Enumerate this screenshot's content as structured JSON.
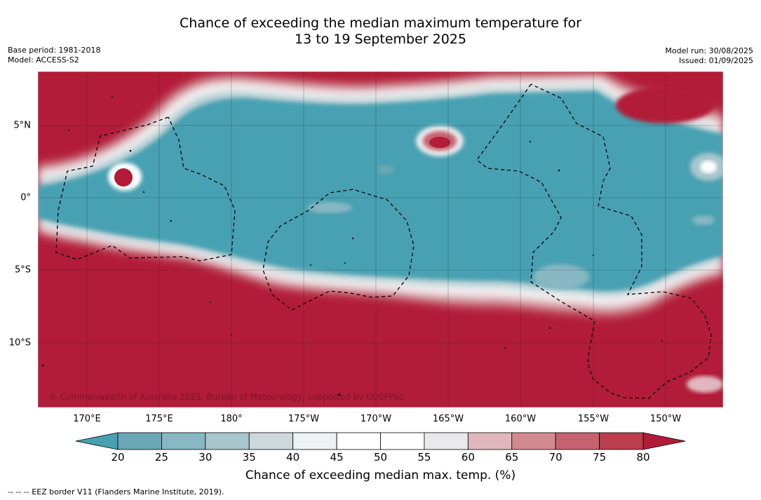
{
  "title_line1": "Chance of exceeding the median maximum temperature for",
  "title_line2": "13 to 19 September 2025",
  "meta_left": {
    "base_period": "Base period: 1981-2018",
    "model": "Model: ACCESS-S2"
  },
  "meta_right": {
    "model_run": "Model run: 30/08/2025",
    "issued": "Issued: 01/09/2025"
  },
  "map": {
    "lon_ticks": [
      "170°E",
      "175°E",
      "180°",
      "175°W",
      "170°W",
      "165°W",
      "160°W",
      "155°W",
      "150°W"
    ],
    "lat_ticks": [
      "5°N",
      "0°",
      "5°S",
      "10°S"
    ],
    "lon_range_deg_east": [
      166.5,
      214.0
    ],
    "lat_range_deg": [
      -14.5,
      8.7
    ],
    "background_category": "above (>80%)",
    "equatorial_band": "below (20–25%)",
    "copyright": "© Commonwealth of Australia 2025, Bureau of Meteorology, supported by COSPPac"
  },
  "colorbar": {
    "ticks": [
      "20",
      "25",
      "30",
      "35",
      "40",
      "45",
      "50",
      "55",
      "60",
      "65",
      "70",
      "75",
      "80"
    ],
    "colors": [
      "#69a7b6",
      "#87b7c2",
      "#a7c6cc",
      "#cdd8dc",
      "#eef2f5",
      "#ffffff",
      "#ffffff",
      "#e9e9eb",
      "#dfb7bd",
      "#d38990",
      "#c6626f",
      "#bb3d4e"
    ],
    "under_color": "#47a1b2",
    "over_color": "#b21c38",
    "label": "Chance of exceeding median max. temp. (%)"
  },
  "footnote": "--  --  -- EEZ border V11 (Flanders Marine Institute, 2019)."
}
